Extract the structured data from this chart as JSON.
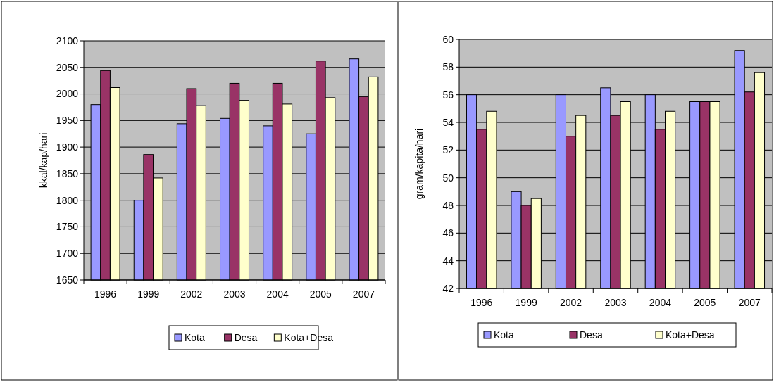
{
  "chart_data": [
    {
      "type": "bar",
      "ylabel": "kkal/kap/hari",
      "categories": [
        "1996",
        "1999",
        "2002",
        "2003",
        "2004",
        "2005",
        "2007"
      ],
      "series": [
        {
          "name": "Kota",
          "color": "#9999ff",
          "values": [
            1980,
            1800,
            1944,
            1954,
            1940,
            1925,
            2066
          ]
        },
        {
          "name": "Desa",
          "color": "#993366",
          "values": [
            2044,
            1886,
            2010,
            2020,
            2020,
            2062,
            1995
          ]
        },
        {
          "name": "Kota+Desa",
          "color": "#ffffcc",
          "values": [
            2012,
            1842,
            1978,
            1988,
            1981,
            1993,
            2032
          ]
        }
      ],
      "ylim": [
        1650,
        2100
      ],
      "yticks": [
        1650,
        1700,
        1750,
        1800,
        1850,
        1900,
        1950,
        2000,
        2050,
        2100
      ],
      "grid": "y",
      "legend": "bottom"
    },
    {
      "type": "bar",
      "ylabel": "gram/kapita/hari",
      "categories": [
        "1996",
        "1999",
        "2002",
        "2003",
        "2004",
        "2005",
        "2007"
      ],
      "series": [
        {
          "name": "Kota",
          "color": "#9999ff",
          "values": [
            56,
            49,
            56,
            56.5,
            56,
            55.5,
            59.2
          ]
        },
        {
          "name": "Desa",
          "color": "#993366",
          "values": [
            53.5,
            48,
            53,
            54.5,
            53.5,
            55.5,
            56.2
          ]
        },
        {
          "name": "Kota+Desa",
          "color": "#ffffcc",
          "values": [
            54.8,
            48.5,
            54.5,
            55.5,
            54.8,
            55.5,
            57.6
          ]
        }
      ],
      "ylim": [
        42,
        60
      ],
      "yticks": [
        42,
        44,
        46,
        48,
        50,
        52,
        54,
        56,
        58,
        60
      ],
      "grid": "y",
      "legend": "bottom"
    }
  ]
}
